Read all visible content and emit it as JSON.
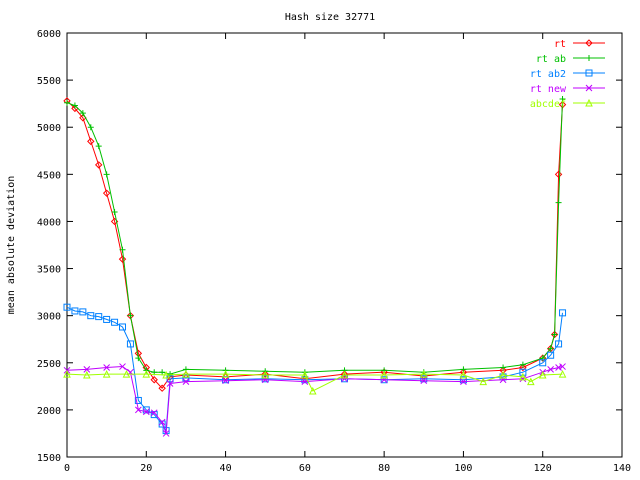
{
  "chart_data": {
    "type": "line",
    "title": "Hash size 32771",
    "xlabel": "",
    "ylabel": "mean absolute deviation",
    "xlim": [
      0,
      140
    ],
    "ylim": [
      1500,
      6000
    ],
    "xticks": [
      0,
      20,
      40,
      60,
      80,
      100,
      120,
      140
    ],
    "yticks": [
      1500,
      2000,
      2500,
      3000,
      3500,
      4000,
      4500,
      5000,
      5500,
      6000
    ],
    "grid": false,
    "legend_position": "top-right",
    "series": [
      {
        "name": "rt",
        "color": "#ff0000",
        "marker": "diamond",
        "x": [
          0,
          2,
          4,
          6,
          8,
          10,
          12,
          14,
          16,
          18,
          20,
          22,
          24,
          26,
          30,
          40,
          50,
          60,
          70,
          80,
          90,
          100,
          110,
          115,
          120,
          122,
          123,
          124,
          125
        ],
        "y": [
          5280,
          5200,
          5100,
          4850,
          4600,
          4300,
          4000,
          3600,
          3000,
          2600,
          2450,
          2320,
          2230,
          2350,
          2370,
          2350,
          2380,
          2330,
          2380,
          2400,
          2360,
          2400,
          2420,
          2450,
          2550,
          2650,
          2800,
          4500,
          5240
        ]
      },
      {
        "name": "rt ab",
        "color": "#00c000",
        "marker": "plus",
        "x": [
          0,
          2,
          4,
          6,
          8,
          10,
          12,
          14,
          16,
          18,
          20,
          22,
          24,
          26,
          30,
          40,
          50,
          60,
          70,
          80,
          90,
          100,
          110,
          115,
          120,
          122,
          123,
          124,
          125
        ],
        "y": [
          5260,
          5230,
          5150,
          5000,
          4800,
          4500,
          4100,
          3700,
          3000,
          2550,
          2420,
          2400,
          2400,
          2380,
          2430,
          2420,
          2410,
          2400,
          2420,
          2420,
          2400,
          2430,
          2450,
          2480,
          2550,
          2650,
          2800,
          4200,
          5300
        ]
      },
      {
        "name": "rt ab2",
        "color": "#0080ff",
        "marker": "square",
        "x": [
          0,
          2,
          4,
          6,
          8,
          10,
          12,
          14,
          16,
          18,
          20,
          22,
          24,
          25,
          26,
          30,
          40,
          50,
          60,
          70,
          80,
          90,
          100,
          110,
          115,
          120,
          122,
          124,
          125
        ],
        "y": [
          3090,
          3050,
          3040,
          3000,
          2990,
          2960,
          2930,
          2880,
          2700,
          2100,
          2000,
          1950,
          1850,
          1780,
          2330,
          2340,
          2320,
          2330,
          2320,
          2330,
          2320,
          2330,
          2320,
          2350,
          2400,
          2500,
          2580,
          2700,
          3030
        ]
      },
      {
        "name": "rt new",
        "color": "#c000ff",
        "marker": "x",
        "x": [
          0,
          5,
          10,
          14,
          16,
          18,
          20,
          22,
          24,
          25,
          26,
          30,
          40,
          50,
          60,
          70,
          80,
          90,
          100,
          110,
          115,
          120,
          122,
          124,
          125
        ],
        "y": [
          2420,
          2430,
          2450,
          2460,
          2400,
          2000,
          1980,
          1970,
          1870,
          1750,
          2280,
          2300,
          2310,
          2320,
          2300,
          2330,
          2320,
          2310,
          2300,
          2320,
          2330,
          2400,
          2430,
          2450,
          2460
        ]
      },
      {
        "name": "abcdef",
        "color": "#a0ff00",
        "marker": "triangle",
        "x": [
          0,
          5,
          10,
          15,
          20,
          25,
          30,
          40,
          50,
          60,
          62,
          70,
          80,
          90,
          100,
          105,
          110,
          115,
          117,
          120,
          125
        ],
        "y": [
          2380,
          2370,
          2380,
          2380,
          2380,
          2370,
          2380,
          2380,
          2370,
          2370,
          2200,
          2370,
          2370,
          2380,
          2370,
          2300,
          2370,
          2350,
          2300,
          2370,
          2380
        ]
      }
    ]
  }
}
